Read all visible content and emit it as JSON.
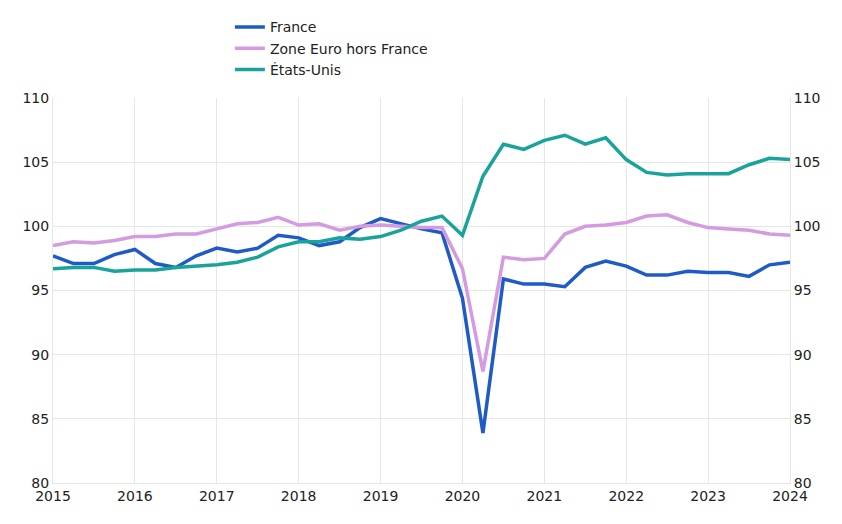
{
  "chart_data": {
    "type": "line",
    "x": [
      2015,
      2015.25,
      2015.5,
      2015.75,
      2016,
      2016.25,
      2016.5,
      2016.75,
      2017,
      2017.25,
      2017.5,
      2017.75,
      2018,
      2018.25,
      2018.5,
      2018.75,
      2019,
      2019.25,
      2019.5,
      2019.75,
      2020,
      2020.25,
      2020.5,
      2020.75,
      2021,
      2021.25,
      2021.5,
      2021.75,
      2022,
      2022.25,
      2022.5,
      2022.75,
      2023,
      2023.25,
      2023.5,
      2023.75,
      2024
    ],
    "series": [
      {
        "name": "France",
        "color": "#1f5bc6",
        "values": [
          97.7,
          97.1,
          97.1,
          97.8,
          98.2,
          97.1,
          96.8,
          97.7,
          98.3,
          98.0,
          98.3,
          99.3,
          99.1,
          98.5,
          98.8,
          99.9,
          100.6,
          100.2,
          99.8,
          99.5,
          94.4,
          83.9,
          95.9,
          95.5,
          95.5,
          95.3,
          96.8,
          97.3,
          96.9,
          96.2,
          96.2,
          96.5,
          96.4,
          96.4,
          96.1,
          97.0,
          97.2
        ]
      },
      {
        "name": "Zone Euro hors France",
        "color": "#d49be0",
        "values": [
          98.5,
          98.8,
          98.7,
          98.9,
          99.2,
          99.2,
          99.4,
          99.4,
          99.8,
          100.2,
          100.3,
          100.7,
          100.1,
          100.2,
          99.7,
          100.0,
          100.1,
          100.0,
          99.9,
          99.9,
          96.7,
          88.7,
          97.6,
          97.4,
          97.5,
          99.4,
          100.0,
          100.1,
          100.3,
          100.8,
          100.9,
          100.3,
          99.9,
          99.8,
          99.7,
          99.4,
          99.3
        ]
      },
      {
        "name": "États-Unis",
        "color": "#1aa39a",
        "values": [
          96.7,
          96.8,
          96.8,
          96.5,
          96.6,
          96.6,
          96.8,
          96.9,
          97.0,
          97.2,
          97.6,
          98.4,
          98.8,
          98.8,
          99.1,
          99.0,
          99.2,
          99.7,
          100.4,
          100.8,
          99.3,
          103.9,
          106.4,
          106.0,
          106.7,
          107.1,
          106.4,
          106.9,
          105.2,
          104.2,
          104.0,
          104.1,
          104.1,
          104.1,
          104.8,
          105.3,
          105.2
        ]
      }
    ],
    "xlim": [
      2015,
      2024
    ],
    "xticks": [
      2015,
      2016,
      2017,
      2018,
      2019,
      2020,
      2021,
      2022,
      2023,
      2024
    ],
    "ylim": [
      80,
      110
    ],
    "yticks": [
      80,
      85,
      90,
      95,
      100,
      105,
      110
    ],
    "grid": true,
    "legend": "top"
  }
}
